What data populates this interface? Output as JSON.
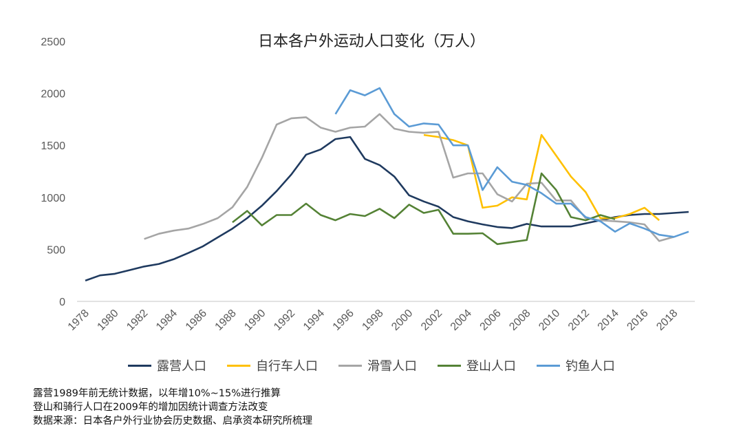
{
  "chart_data": {
    "type": "line",
    "title": "日本各户外运动人口变化（万人）",
    "xlabel": "",
    "ylabel": "",
    "ylim": [
      0,
      2500
    ],
    "xlim": [
      1978,
      2019
    ],
    "yticks": [
      0,
      500,
      1000,
      1500,
      2000,
      2500
    ],
    "xticks": [
      1978,
      1980,
      1982,
      1984,
      1986,
      1988,
      1990,
      1992,
      1994,
      1996,
      1998,
      2000,
      2002,
      2004,
      2006,
      2008,
      2010,
      2012,
      2014,
      2016,
      2018
    ],
    "grid": false,
    "legend_position": "bottom",
    "series": [
      {
        "name": "露营人口",
        "color": "#1f3a5f",
        "start": 1978,
        "values": [
          200,
          250,
          265,
          300,
          335,
          360,
          405,
          465,
          530,
          615,
          700,
          800,
          920,
          1060,
          1220,
          1410,
          1460,
          1560,
          1580,
          1370,
          1310,
          1200,
          1020,
          960,
          910,
          810,
          770,
          740,
          715,
          705,
          745,
          720,
          720,
          720,
          750,
          780,
          810,
          830,
          840,
          840,
          850,
          860
        ]
      },
      {
        "name": "自行车人口",
        "color": "#ffc000",
        "start": 2001,
        "values": [
          1600,
          1580,
          1550,
          1500,
          900,
          920,
          1000,
          980,
          1600,
          1400,
          1200,
          1050,
          800,
          800,
          840,
          900,
          780
        ]
      },
      {
        "name": "滑雪人口",
        "color": "#a5a5a5",
        "start": 1982,
        "values": [
          600,
          650,
          680,
          700,
          745,
          800,
          905,
          1100,
          1380,
          1700,
          1760,
          1770,
          1670,
          1630,
          1670,
          1680,
          1800,
          1660,
          1630,
          1620,
          1630,
          1190,
          1230,
          1230,
          1030,
          960,
          1130,
          1140,
          970,
          970,
          800,
          780,
          770,
          760,
          740,
          580,
          620
        ]
      },
      {
        "name": "登山人口",
        "color": "#548235",
        "start": 1988,
        "values": [
          760,
          870,
          730,
          830,
          830,
          940,
          830,
          780,
          840,
          820,
          890,
          800,
          930,
          850,
          880,
          650,
          650,
          655,
          550,
          570,
          590,
          1230,
          1070,
          810,
          780,
          830,
          790
        ]
      },
      {
        "name": "钓鱼人口",
        "color": "#5b9bd5",
        "start": 1995,
        "values": [
          1800,
          2030,
          1980,
          2050,
          1800,
          1680,
          1710,
          1700,
          1500,
          1500,
          1070,
          1290,
          1150,
          1120,
          1040,
          940,
          940,
          810,
          770,
          670,
          750,
          700,
          640,
          620,
          670
        ]
      }
    ]
  },
  "notes": [
    "露营1989年前无统计数据，以年增10%~15%进行推算",
    "登山和骑行人口在2009年的增加因统计调查方法改变",
    "数据来源：日本各户外行业协会历史数据、启承资本研究所梳理"
  ]
}
